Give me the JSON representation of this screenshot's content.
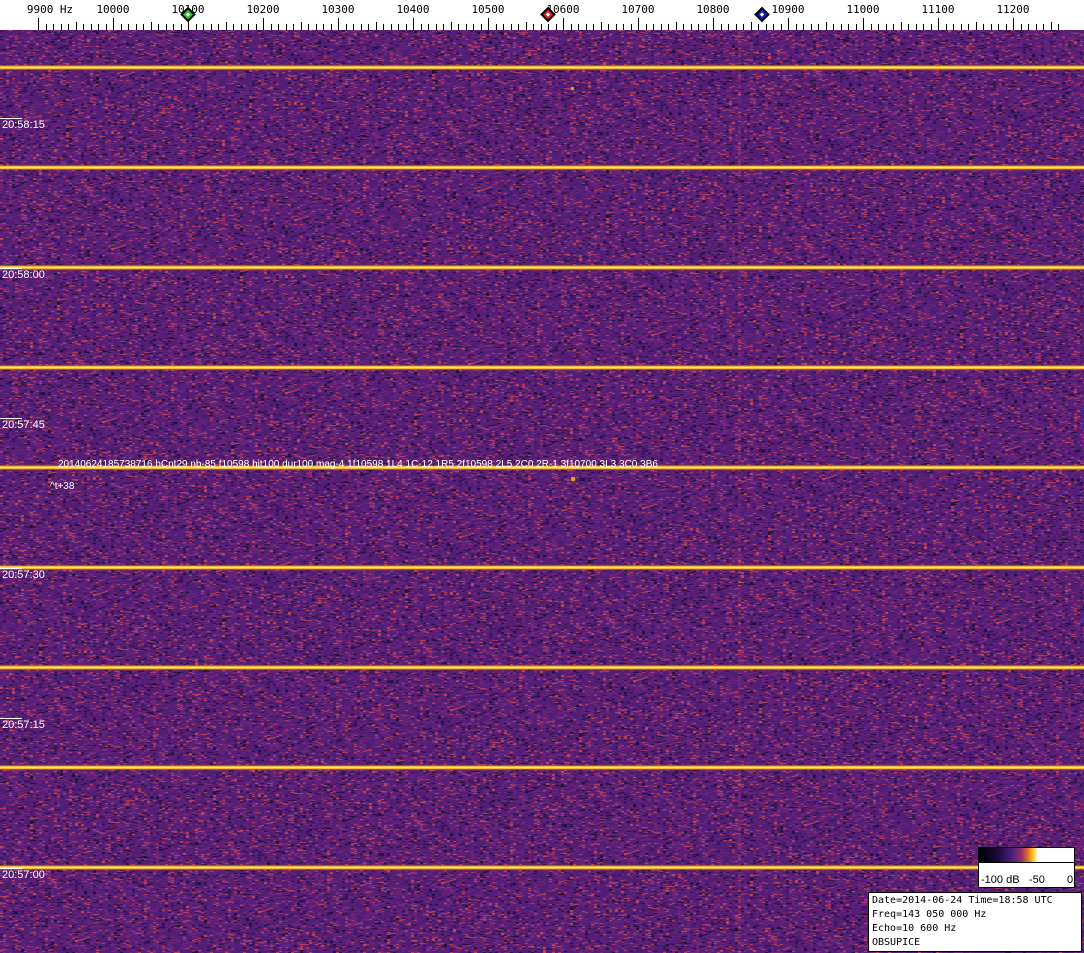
{
  "chart_data": {
    "type": "heatmap",
    "xlabel_unit": "Hz",
    "x_ticks": [
      "9900 Hz",
      "10000",
      "10100",
      "10200",
      "10300",
      "10400",
      "10500",
      "10600",
      "10700",
      "10800",
      "10900",
      "11000",
      "11100",
      "11200"
    ],
    "x_tick_values": [
      9900,
      10000,
      10100,
      10200,
      10300,
      10400,
      10500,
      10600,
      10700,
      10800,
      10900,
      11000,
      11100,
      11200
    ],
    "y_ticks": [
      "20:58:15",
      "20:58:00",
      "20:57:45",
      "20:57:30",
      "20:57:15",
      "20:57:00"
    ],
    "markers": [
      {
        "freq": 10100,
        "color": "#22cc22"
      },
      {
        "freq": 10580,
        "color": "#dd2222"
      },
      {
        "freq": 10865,
        "color": "#1122cc"
      }
    ],
    "colorscale": {
      "labels": [
        "-100 dB",
        "-50",
        "0"
      ],
      "colors": [
        "#000000",
        "#4a1f7a",
        "#e07a1a",
        "#ffd040",
        "#ffffff"
      ]
    },
    "background_color": "#4a1f6e",
    "carrier_color": "#ffd040",
    "annotation": "20140624185738716 hCnt29 nb-85 f10598 hit100 dur100 mag-4 1f10598 1L4 1C-12 1R5 2f10598 2L5 2C0 2R-1 3f10700 3L3 3C0 3B6",
    "annotation_sub": "^t+38"
  },
  "info": {
    "line1": "Date=2014-06-24 Time=18:58 UTC",
    "line2": "Freq=143 050 000 Hz",
    "line3": "Echo=10 600 Hz",
    "line4": "OBSUPICE"
  }
}
